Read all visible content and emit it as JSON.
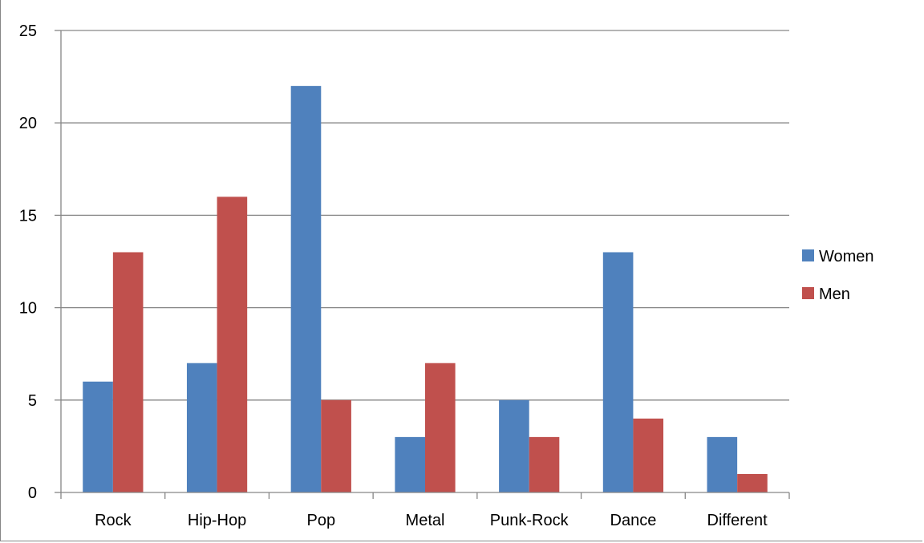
{
  "chart_data": {
    "type": "bar",
    "title": "",
    "xlabel": "",
    "ylabel": "",
    "categories": [
      "Rock",
      "Hip-Hop",
      "Pop",
      "Metal",
      "Punk-Rock",
      "Dance",
      "Different"
    ],
    "series": [
      {
        "name": "Women",
        "color": "#4F81BD",
        "values": [
          6,
          7,
          22,
          3,
          5,
          13,
          3
        ]
      },
      {
        "name": "Men",
        "color": "#C0504D",
        "values": [
          13,
          16,
          5,
          7,
          3,
          4,
          1
        ]
      }
    ],
    "ylim": [
      0,
      25
    ],
    "yticks": [
      0,
      5,
      10,
      15,
      20,
      25
    ],
    "grid": true,
    "legend_position": "right"
  },
  "colors": {
    "gridline": "#868686",
    "axis": "#868686"
  }
}
